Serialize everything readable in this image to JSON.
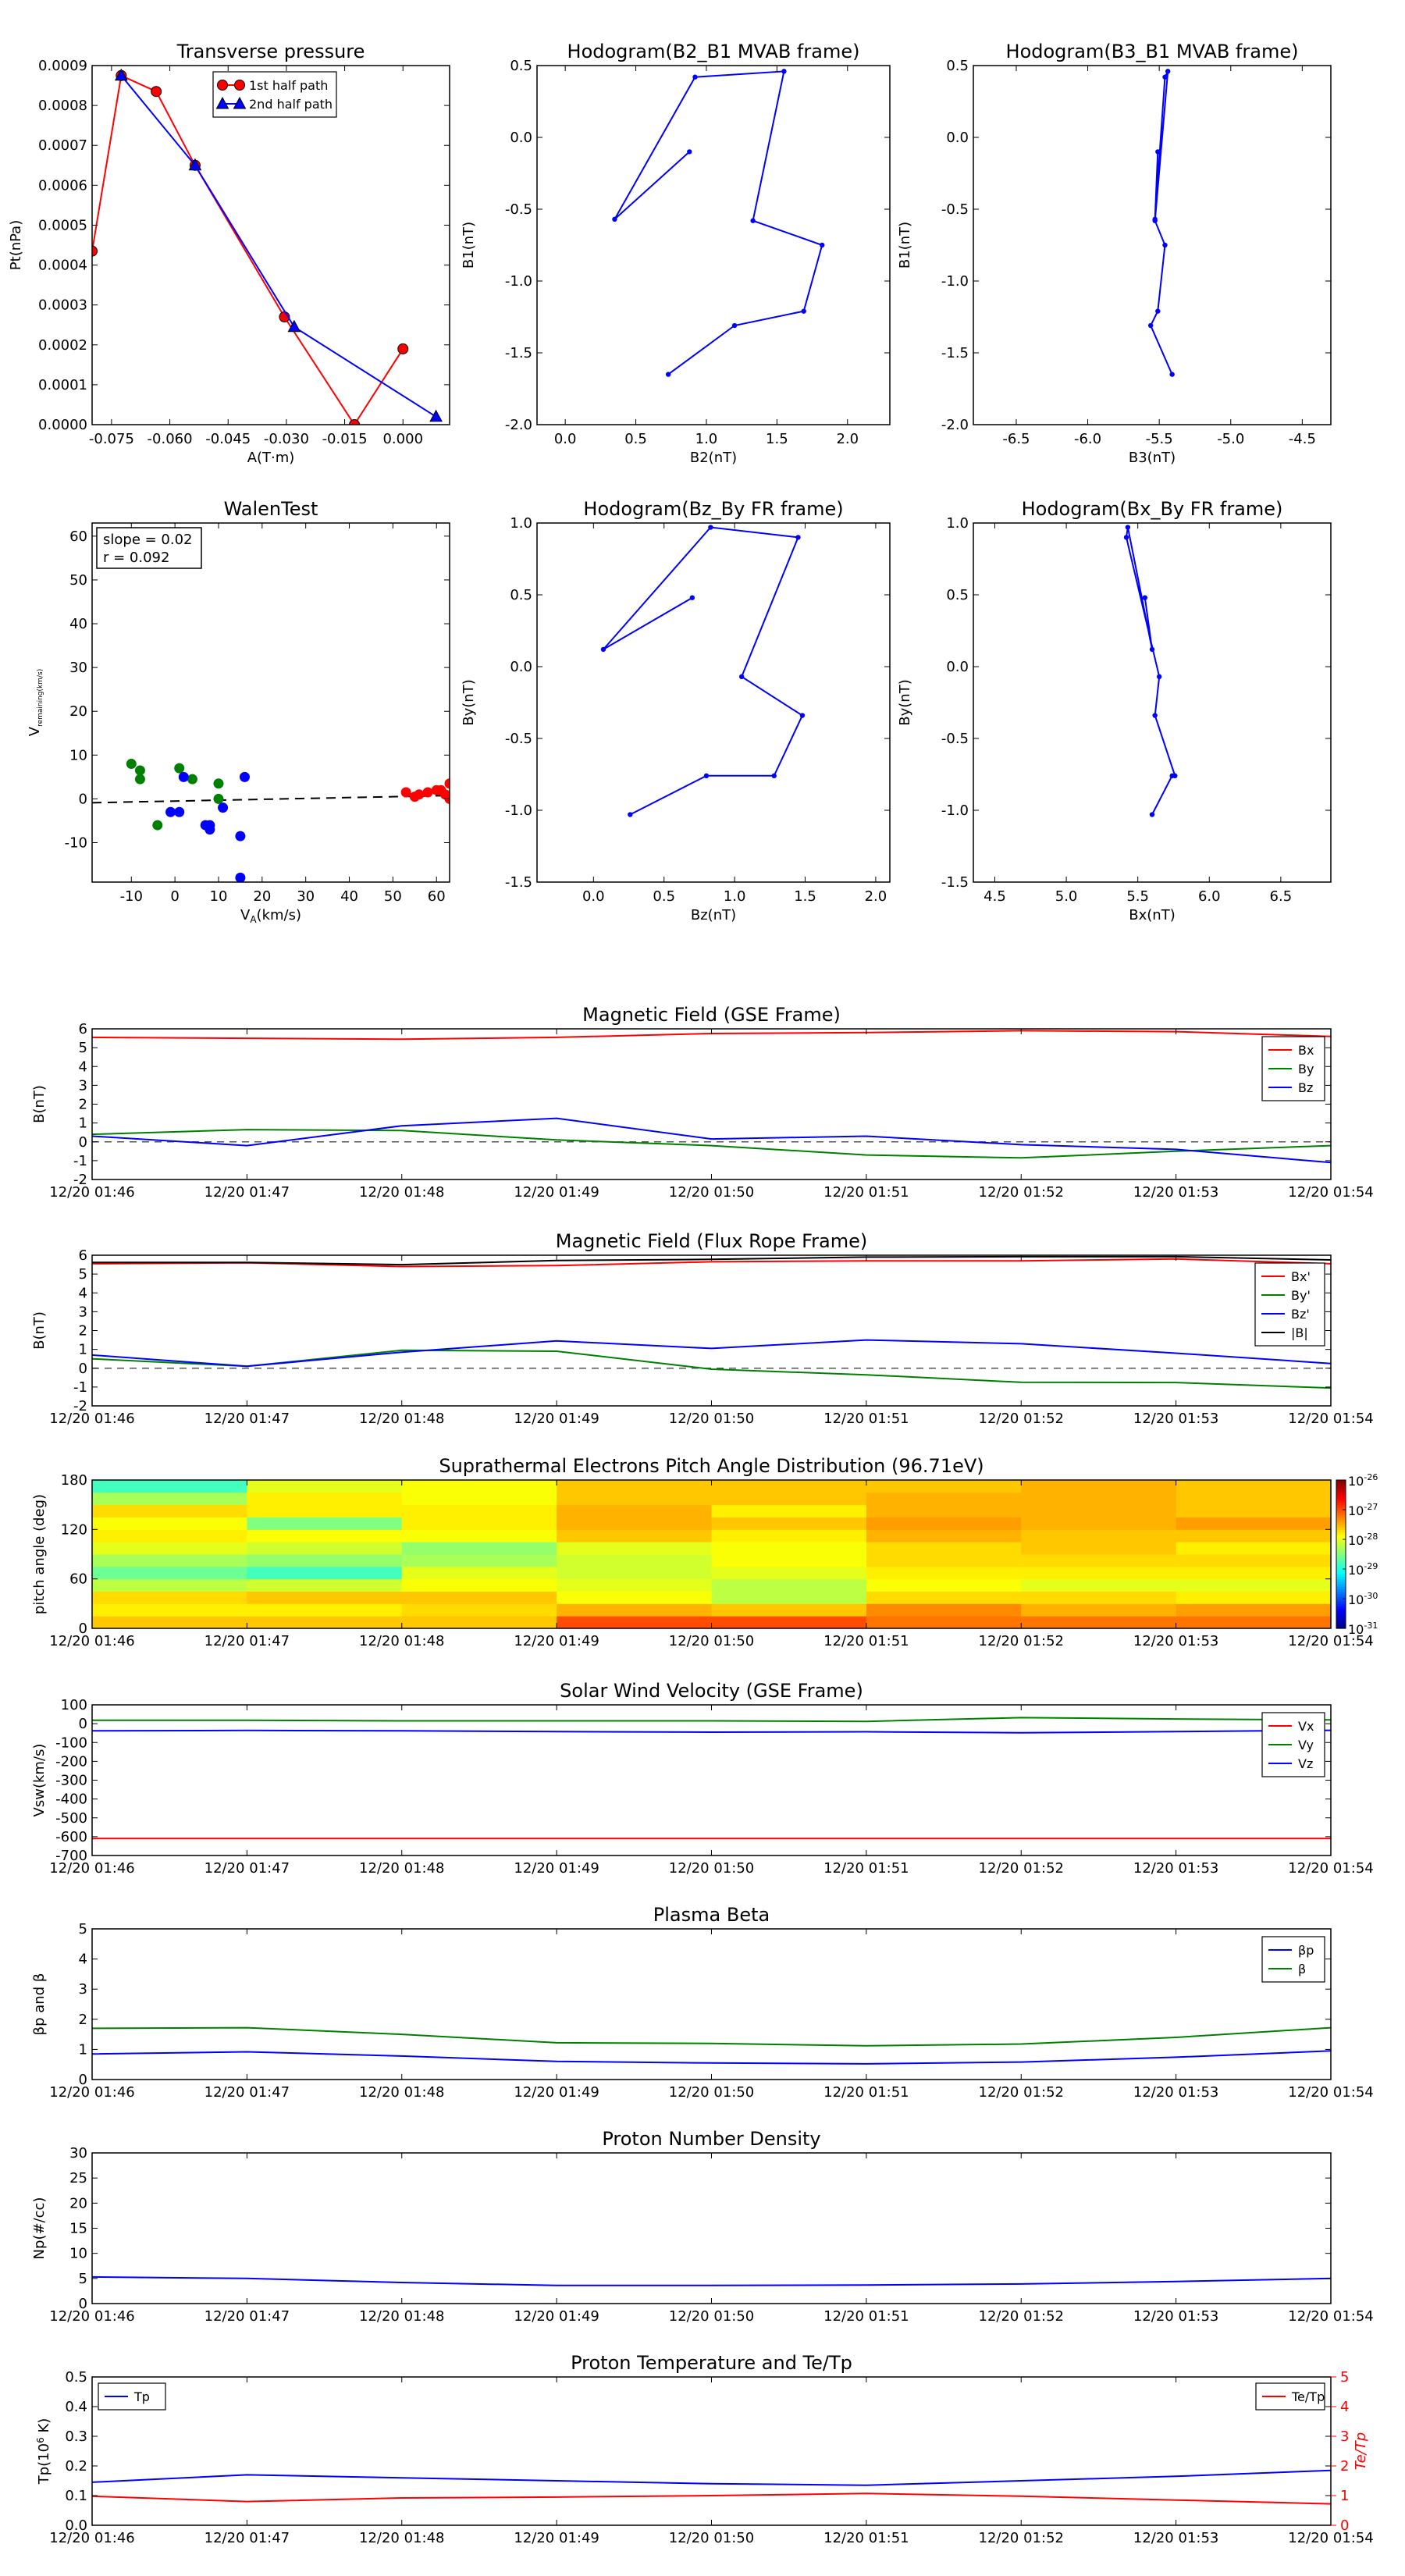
{
  "colors": {
    "red": "#ff0000",
    "green": "#008000",
    "blue": "#0000ff",
    "black": "#000000",
    "dash": "#000000"
  },
  "time_ticks": [
    "12/20 01:46",
    "12/20 01:47",
    "12/20 01:48",
    "12/20 01:49",
    "12/20 01:50",
    "12/20 01:51",
    "12/20 01:52",
    "12/20 01:53",
    "12/20 01:54"
  ],
  "chart_data": [
    {
      "id": "transverse-pressure",
      "type": "line",
      "title": "Transverse pressure",
      "xlabel": "A(T·m)",
      "ylabel": "Pt(nPa)",
      "xlim": [
        -0.08,
        0.012
      ],
      "ylim": [
        0,
        0.0009
      ],
      "xticks": [
        "-0.075",
        "-0.060",
        "-0.045",
        "-0.030",
        "-0.015",
        "0.000"
      ],
      "xtick_vals": [
        -0.075,
        -0.06,
        -0.045,
        -0.03,
        -0.015,
        0
      ],
      "yticks": [
        "0.0000",
        "0.0001",
        "0.0002",
        "0.0003",
        "0.0004",
        "0.0005",
        "0.0006",
        "0.0007",
        "0.0008",
        "0.0009"
      ],
      "ytick_vals": [
        0,
        0.0001,
        0.0002,
        0.0003,
        0.0004,
        0.0005,
        0.0006,
        0.0007,
        0.0008,
        0.0009
      ],
      "legend": [
        "1st half path",
        "2nd half path"
      ],
      "series": [
        {
          "name": "1st half path",
          "color": "red",
          "marker": "circle",
          "x": [
            0,
            -0.0125,
            -0.0305,
            -0.0535,
            -0.0635,
            -0.0725,
            -0.08
          ],
          "y": [
            0.00019,
            0.0,
            0.00027,
            0.00065,
            0.000835,
            0.000875,
            0.000435
          ]
        },
        {
          "name": "2nd half path",
          "color": "blue",
          "marker": "triangle",
          "x": [
            -0.0725,
            -0.0535,
            -0.028,
            0.0085
          ],
          "y": [
            0.000875,
            0.00065,
            0.000245,
            2e-05
          ]
        }
      ]
    },
    {
      "id": "hodogram-b2-b1",
      "type": "line",
      "title": "Hodogram(B2_B1 MVAB frame)",
      "xlabel": "B2(nT)",
      "ylabel": "B1(nT)",
      "xlim": [
        -0.2,
        2.3
      ],
      "ylim": [
        -2,
        0.5
      ],
      "xticks": [
        "0.0",
        "0.5",
        "1.0",
        "1.5",
        "2.0"
      ],
      "xtick_vals": [
        0,
        0.5,
        1,
        1.5,
        2
      ],
      "yticks": [
        "-2.0",
        "-1.5",
        "-1.0",
        "-0.5",
        "0.0",
        "0.5"
      ],
      "ytick_vals": [
        -2,
        -1.5,
        -1,
        -0.5,
        0,
        0.5
      ],
      "series": [
        {
          "name": "hodogram",
          "color": "blue",
          "marker": "dot",
          "x": [
            0.88,
            0.35,
            0.92,
            1.55,
            1.33,
            1.82,
            1.69,
            1.2,
            0.73
          ],
          "y": [
            -0.1,
            -0.57,
            0.42,
            0.46,
            -0.58,
            -0.75,
            -1.21,
            -1.31,
            -1.65
          ]
        }
      ]
    },
    {
      "id": "hodogram-b3-b1",
      "type": "line",
      "title": "Hodogram(B3_B1 MVAB frame)",
      "xlabel": "B3(nT)",
      "ylabel": "B1(nT)",
      "xlim": [
        -6.8,
        -4.3
      ],
      "ylim": [
        -2,
        0.5
      ],
      "xticks": [
        "-6.5",
        "-6.0",
        "-5.5",
        "-5.0",
        "-4.5"
      ],
      "xtick_vals": [
        -6.5,
        -6,
        -5.5,
        -5,
        -4.5
      ],
      "yticks": [
        "-2.0",
        "-1.5",
        "-1.0",
        "-0.5",
        "0.0",
        "0.5"
      ],
      "ytick_vals": [
        -2,
        -1.5,
        -1,
        -0.5,
        0,
        0.5
      ],
      "series": [
        {
          "name": "hodogram",
          "color": "blue",
          "marker": "dot",
          "x": [
            -5.51,
            -5.53,
            -5.46,
            -5.44,
            -5.53,
            -5.46,
            -5.51,
            -5.56,
            -5.41
          ],
          "y": [
            -0.1,
            -0.57,
            0.42,
            0.46,
            -0.58,
            -0.75,
            -1.21,
            -1.31,
            -1.65
          ]
        }
      ]
    },
    {
      "id": "walen-test",
      "type": "scatter",
      "title": "WalenTest",
      "xlabel": "V_A(km/s)",
      "ylabel": "V_remaining(km/s)",
      "xlim": [
        -19,
        63
      ],
      "ylim": [
        -19,
        63
      ],
      "xticks": [
        "-10",
        "0",
        "10",
        "20",
        "30",
        "40",
        "50",
        "60"
      ],
      "xtick_vals": [
        -10,
        0,
        10,
        20,
        30,
        40,
        50,
        60
      ],
      "yticks": [
        "-10",
        "0",
        "10",
        "20",
        "30",
        "40",
        "50",
        "60"
      ],
      "ytick_vals": [
        -10,
        0,
        10,
        20,
        30,
        40,
        50,
        60
      ],
      "annotation": [
        "slope = 0.02",
        "r = 0.092"
      ],
      "fit": {
        "slope": 0.02,
        "intercept": -0.5
      },
      "series": [
        {
          "name": "green",
          "color": "green",
          "x": [
            -10,
            -8,
            -8,
            -4,
            1,
            4,
            10,
            10
          ],
          "y": [
            8,
            6.5,
            4.5,
            -6,
            7,
            4.5,
            3.5,
            0
          ]
        },
        {
          "name": "blue",
          "color": "blue",
          "x": [
            -1,
            1,
            2,
            7,
            8,
            8,
            11,
            15,
            15,
            16
          ],
          "y": [
            -3,
            -3,
            5,
            -6,
            -6,
            -7,
            -2,
            -18,
            -8.5,
            5
          ]
        },
        {
          "name": "red",
          "color": "red",
          "x": [
            53,
            55,
            56,
            58,
            60,
            61,
            62,
            63,
            63
          ],
          "y": [
            1.5,
            0.5,
            1,
            1.5,
            2,
            2,
            1,
            3.5,
            0
          ]
        }
      ]
    },
    {
      "id": "hodogram-bz-by",
      "type": "line",
      "title": "Hodogram(Bz_By FR frame)",
      "xlabel": "Bz(nT)",
      "ylabel": "By(nT)",
      "xlim": [
        -0.4,
        2.1
      ],
      "ylim": [
        -1.5,
        1
      ],
      "xticks": [
        "0.0",
        "0.5",
        "1.0",
        "1.5",
        "2.0"
      ],
      "xtick_vals": [
        0,
        0.5,
        1,
        1.5,
        2
      ],
      "yticks": [
        "-1.5",
        "-1.0",
        "-0.5",
        "0.0",
        "0.5",
        "1.0"
      ],
      "ytick_vals": [
        -1.5,
        -1,
        -0.5,
        0,
        0.5,
        1
      ],
      "series": [
        {
          "name": "hodogram",
          "color": "blue",
          "marker": "dot",
          "x": [
            0.7,
            0.07,
            0.83,
            1.45,
            1.05,
            1.48,
            1.28,
            0.8,
            0.26
          ],
          "y": [
            0.48,
            0.12,
            0.97,
            0.9,
            -0.07,
            -0.34,
            -0.76,
            -0.76,
            -1.03
          ]
        }
      ]
    },
    {
      "id": "hodogram-bx-by",
      "type": "line",
      "title": "Hodogram(Bx_By FR frame)",
      "xlabel": "Bx(nT)",
      "ylabel": "By(nT)",
      "xlim": [
        4.35,
        6.85
      ],
      "ylim": [
        -1.5,
        1
      ],
      "xticks": [
        "4.5",
        "5.0",
        "5.5",
        "6.0",
        "6.5"
      ],
      "xtick_vals": [
        4.5,
        5,
        5.5,
        6,
        6.5
      ],
      "yticks": [
        "-1.5",
        "-1.0",
        "-0.5",
        "0.0",
        "0.5",
        "1.0"
      ],
      "ytick_vals": [
        -1.5,
        -1,
        -0.5,
        0,
        0.5,
        1
      ],
      "series": [
        {
          "name": "hodogram",
          "color": "blue",
          "marker": "dot",
          "x": [
            5.55,
            5.6,
            5.43,
            5.42,
            5.65,
            5.62,
            5.76,
            5.74,
            5.6
          ],
          "y": [
            0.48,
            0.12,
            0.97,
            0.9,
            -0.07,
            -0.34,
            -0.76,
            -0.76,
            -1.03
          ]
        }
      ]
    },
    {
      "id": "magnetic-field-gse",
      "type": "line",
      "title": "Magnetic Field (GSE Frame)",
      "ylabel": "B(nT)",
      "ylim": [
        -2,
        6
      ],
      "yticks": [
        "-2",
        "-1",
        "0",
        "1",
        "2",
        "3",
        "4",
        "5",
        "6"
      ],
      "ytick_vals": [
        -2,
        -1,
        0,
        1,
        2,
        3,
        4,
        5,
        6
      ],
      "zero_line": true,
      "legend_pos": "right",
      "series": [
        {
          "name": "Bx",
          "color": "red",
          "values": [
            5.55,
            5.5,
            5.45,
            5.55,
            5.75,
            5.8,
            5.9,
            5.85,
            5.6
          ]
        },
        {
          "name": "By",
          "color": "green",
          "values": [
            0.4,
            0.65,
            0.6,
            0.1,
            -0.2,
            -0.7,
            -0.85,
            -0.5,
            -0.2
          ]
        },
        {
          "name": "Bz",
          "color": "blue",
          "values": [
            0.3,
            -0.2,
            0.85,
            1.25,
            0.15,
            0.3,
            -0.15,
            -0.4,
            -1.1
          ]
        }
      ]
    },
    {
      "id": "magnetic-field-fr",
      "type": "line",
      "title": "Magnetic Field (Flux Rope Frame)",
      "ylabel": "B(nT)",
      "ylim": [
        -2,
        6
      ],
      "yticks": [
        "-2",
        "-1",
        "0",
        "1",
        "2",
        "3",
        "4",
        "5",
        "6"
      ],
      "ytick_vals": [
        -2,
        -1,
        0,
        1,
        2,
        3,
        4,
        5,
        6
      ],
      "zero_line": true,
      "legend_pos": "right",
      "series": [
        {
          "name": "Bx'",
          "color": "red",
          "values": [
            5.55,
            5.6,
            5.4,
            5.45,
            5.65,
            5.7,
            5.7,
            5.8,
            5.55
          ]
        },
        {
          "name": "By'",
          "color": "green",
          "values": [
            0.5,
            0.1,
            0.95,
            0.9,
            -0.05,
            -0.35,
            -0.75,
            -0.76,
            -1.05
          ]
        },
        {
          "name": "Bz'",
          "color": "blue",
          "values": [
            0.7,
            0.1,
            0.85,
            1.45,
            1.05,
            1.5,
            1.3,
            0.8,
            0.25
          ]
        },
        {
          "name": "|B|",
          "color": "black",
          "values": [
            5.62,
            5.62,
            5.5,
            5.72,
            5.78,
            5.9,
            5.92,
            5.92,
            5.75
          ]
        }
      ]
    },
    {
      "id": "pitch-angle-distribution",
      "type": "heatmap",
      "title": "Suprathermal Electrons Pitch Angle Distribution (96.71eV)",
      "ylabel": "pitch angle (deg)",
      "ylim": [
        0,
        180
      ],
      "yticks": [
        "0",
        "60",
        "120",
        "180"
      ],
      "ytick_vals": [
        0,
        60,
        120,
        180
      ],
      "colorbar_ticks": [
        "10^-31",
        "10^-30",
        "10^-29",
        "10^-28",
        "10^-27",
        "10^-26"
      ],
      "colorbar_exps": [
        "-31",
        "-30",
        "-29",
        "-28",
        "-27",
        "-26"
      ],
      "rows": [
        "0-15",
        "15-30",
        "30-45",
        "45-60",
        "60-75",
        "75-90",
        "90-105",
        "105-120",
        "120-135",
        "135-150",
        "150-165",
        "165-180"
      ],
      "columns": [
        "01:46",
        "01:47",
        "01:48",
        "01:49",
        "01:50",
        "01:51",
        "01:52",
        "01:53"
      ],
      "values": [
        [
          -27.6,
          -27.6,
          -27.6,
          -27.0,
          -27.0,
          -27.2,
          -27.2,
          -27.2
        ],
        [
          -27.8,
          -27.8,
          -27.7,
          -27.5,
          -27.6,
          -27.3,
          -27.5,
          -27.4
        ],
        [
          -27.7,
          -27.6,
          -27.6,
          -27.9,
          -28.2,
          -27.7,
          -27.7,
          -27.8
        ],
        [
          -28.2,
          -28.1,
          -27.9,
          -28.0,
          -28.2,
          -27.9,
          -28.0,
          -28.0
        ],
        [
          -28.6,
          -28.8,
          -28.0,
          -28.1,
          -28.0,
          -27.8,
          -27.8,
          -27.8
        ],
        [
          -28.3,
          -28.4,
          -28.3,
          -28.1,
          -27.9,
          -27.7,
          -27.7,
          -27.7
        ],
        [
          -28.0,
          -28.1,
          -28.4,
          -28.0,
          -27.9,
          -27.7,
          -27.6,
          -27.8
        ],
        [
          -27.8,
          -27.9,
          -27.9,
          -27.6,
          -27.8,
          -27.5,
          -27.6,
          -27.6
        ],
        [
          -27.9,
          -28.5,
          -27.8,
          -27.5,
          -27.6,
          -27.4,
          -27.5,
          -27.4
        ],
        [
          -27.7,
          -27.8,
          -27.8,
          -27.5,
          -27.8,
          -27.5,
          -27.5,
          -27.6
        ],
        [
          -28.3,
          -27.8,
          -27.9,
          -27.6,
          -27.6,
          -27.5,
          -27.5,
          -27.6
        ],
        [
          -28.8,
          -28.0,
          -27.9,
          -27.6,
          -27.6,
          -27.6,
          -27.5,
          -27.6
        ]
      ]
    },
    {
      "id": "solar-wind-velocity",
      "type": "line",
      "title": "Solar Wind Velocity (GSE Frame)",
      "ylabel": "Vsw(km/s)",
      "ylim": [
        -700,
        100
      ],
      "yticks": [
        "-700",
        "-600",
        "-500",
        "-400",
        "-300",
        "-200",
        "-100",
        "0",
        "100"
      ],
      "ytick_vals": [
        -700,
        -600,
        -500,
        -400,
        -300,
        -200,
        -100,
        0,
        100
      ],
      "legend_pos": "right",
      "series": [
        {
          "name": "Vx",
          "color": "red",
          "values": [
            -610,
            -610,
            -610,
            -610,
            -610,
            -610,
            -610,
            -610,
            -610
          ]
        },
        {
          "name": "Vy",
          "color": "green",
          "values": [
            18,
            18,
            15,
            15,
            15,
            12,
            32,
            25,
            20
          ]
        },
        {
          "name": "Vz",
          "color": "blue",
          "values": [
            -38,
            -36,
            -38,
            -42,
            -45,
            -43,
            -48,
            -42,
            -35
          ]
        }
      ]
    },
    {
      "id": "plasma-beta",
      "type": "line",
      "title": "Plasma Beta",
      "ylabel": "βp and β",
      "ylim": [
        0,
        5
      ],
      "yticks": [
        "0",
        "1",
        "2",
        "3",
        "4",
        "5"
      ],
      "ytick_vals": [
        0,
        1,
        2,
        3,
        4,
        5
      ],
      "legend_pos": "right",
      "series": [
        {
          "name": "βp",
          "color": "blue",
          "values": [
            0.85,
            0.92,
            0.78,
            0.6,
            0.55,
            0.52,
            0.58,
            0.74,
            0.95
          ]
        },
        {
          "name": "β",
          "color": "green",
          "values": [
            1.7,
            1.72,
            1.5,
            1.22,
            1.2,
            1.12,
            1.18,
            1.4,
            1.72
          ]
        }
      ]
    },
    {
      "id": "proton-number-density",
      "type": "line",
      "title": "Proton Number Density",
      "ylabel": "Np(#/cc)",
      "ylim": [
        0,
        30
      ],
      "yticks": [
        "0",
        "5",
        "10",
        "15",
        "20",
        "25",
        "30"
      ],
      "ytick_vals": [
        0,
        5,
        10,
        15,
        20,
        25,
        30
      ],
      "series": [
        {
          "name": "Np",
          "color": "blue",
          "values": [
            5.3,
            5,
            4.2,
            3.6,
            3.6,
            3.7,
            3.9,
            4.4,
            5
          ]
        }
      ]
    },
    {
      "id": "proton-temperature",
      "type": "line",
      "title": "Proton Temperature and Te/Tp",
      "ylabel": "Tp(10^6 K)",
      "ylim": [
        0,
        0.5
      ],
      "yticks": [
        "0.0",
        "0.1",
        "0.2",
        "0.3",
        "0.4",
        "0.5"
      ],
      "ytick_vals": [
        0,
        0.1,
        0.2,
        0.3,
        0.4,
        0.5
      ],
      "y2label": "Te/Tp",
      "y2lim": [
        0,
        5
      ],
      "y2ticks": [
        "0",
        "1",
        "2",
        "3",
        "4",
        "5"
      ],
      "y2tick_vals": [
        0,
        1,
        2,
        3,
        4,
        5
      ],
      "series": [
        {
          "name": "Tp",
          "color": "blue",
          "axis": "left",
          "values": [
            0.145,
            0.17,
            0.16,
            0.15,
            0.14,
            0.135,
            0.15,
            0.165,
            0.185
          ]
        },
        {
          "name": "Te/Tp",
          "color": "red",
          "axis": "right",
          "values": [
            0.98,
            0.8,
            0.92,
            0.95,
            1.0,
            1.07,
            0.98,
            0.85,
            0.72
          ]
        }
      ]
    }
  ]
}
